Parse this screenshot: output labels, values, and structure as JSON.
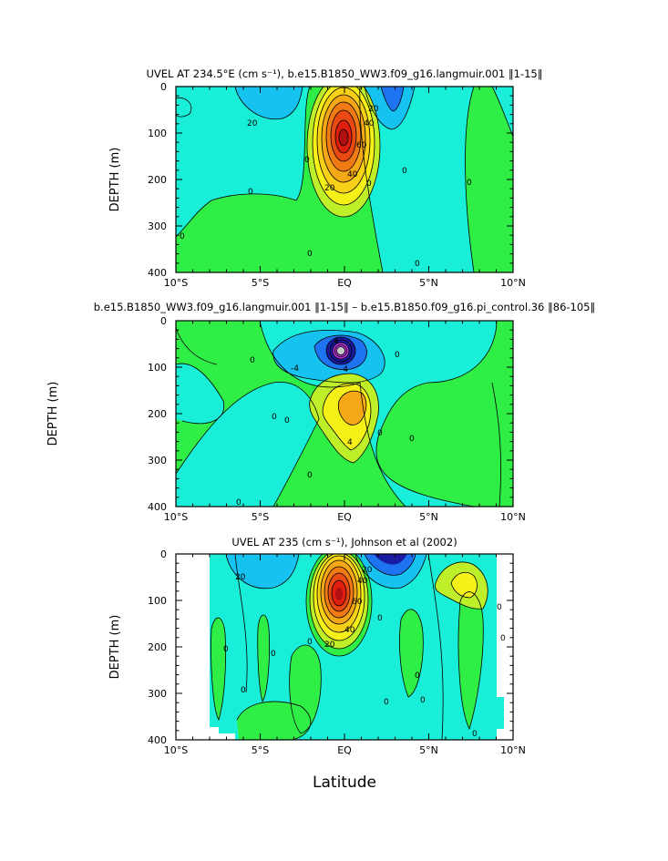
{
  "chart_data": [
    {
      "type": "heatmap",
      "title": "UVEL AT 234.5°E (cm s⁻¹), b.e15.B1850_WW3.f09_g16.langmuir.001 ‖1-15‖",
      "ylabel": "DEPTH (m)",
      "xlabel": "",
      "xlim": [
        -10,
        10
      ],
      "ylim": [
        400,
        0
      ],
      "xticks": [
        "10°S",
        "5°S",
        "EQ",
        "5°N",
        "10°N"
      ],
      "yticks": [
        "0",
        "100",
        "200",
        "300",
        "400"
      ],
      "contour_labels": [
        "20",
        "0",
        "0",
        "0",
        "0",
        "20",
        "40",
        "60",
        "40",
        "20",
        "0",
        "0",
        "0",
        "0"
      ],
      "max_core": {
        "lat": 0,
        "depth": 120,
        "value": 100
      },
      "min_core": {
        "lat": 2.5,
        "depth": 50,
        "value": -30
      }
    },
    {
      "type": "heatmap",
      "title": "b.e15.B1850_WW3.f09_g16.langmuir.001 ‖1-15‖ – b.e15.B1850.f09_g16.pi_control.36 ‖86-105‖",
      "ylabel": "DEPTH (m)",
      "xlabel": "",
      "xlim": [
        -10,
        10
      ],
      "ylim": [
        400,
        0
      ],
      "xticks": [
        "10°S",
        "5°S",
        "EQ",
        "5°N",
        "10°N"
      ],
      "yticks": [
        "0",
        "100",
        "200",
        "300",
        "400"
      ],
      "contour_labels": [
        "-4",
        "4",
        "-4",
        "0",
        "0",
        "0",
        "0",
        "0",
        "0",
        "0",
        "4",
        "0"
      ],
      "min_core": {
        "lat": -0.3,
        "depth": 65,
        "value": -40
      },
      "max_core": {
        "lat": 0.5,
        "depth": 160,
        "value": 16
      }
    },
    {
      "type": "heatmap",
      "title": "UVEL AT 235 (cm s⁻¹), Johnson et al (2002)",
      "ylabel": "DEPTH (m)",
      "xlabel": "Latitude",
      "xlim": [
        -10,
        10
      ],
      "ylim": [
        400,
        0
      ],
      "xticks": [
        "10°S",
        "5°S",
        "EQ",
        "5°N",
        "10°N"
      ],
      "yticks": [
        "0",
        "100",
        "200",
        "300",
        "400"
      ],
      "contour_labels": [
        "20",
        "0",
        "0",
        "0",
        "0",
        "20",
        "40",
        "60",
        "40",
        "20",
        "0",
        "0",
        "0",
        "0",
        "0",
        "0",
        "0"
      ],
      "max_core": {
        "lat": -0.3,
        "depth": 90,
        "value": 100
      },
      "min_core": {
        "lat": 2.5,
        "depth": 20,
        "value": -40
      },
      "data_extent_lat": [
        -8,
        9.7
      ]
    }
  ],
  "colors": {
    "background": "#ffffff",
    "frame": "#000000",
    "green": "#2fef47",
    "cyan": "#18eed8",
    "blue_light": "#15c2f0",
    "blue_dark": "#1e73f0",
    "navy": "#1a1aa0",
    "magenta": "#b832d8",
    "yellow_green": "#bfef28",
    "yellow": "#f5f018",
    "orange": "#f5a815",
    "red": "#df1e10",
    "darkred": "#b01010"
  }
}
